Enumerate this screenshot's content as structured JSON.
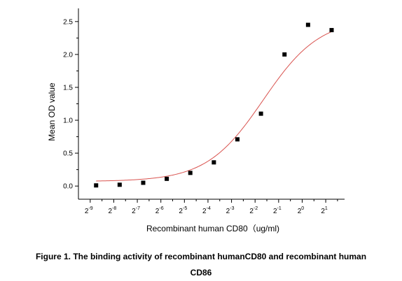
{
  "chart_data": {
    "type": "scatter",
    "xlabel": "Recombinant human  CD80（ug/ml)",
    "ylabel": "Mean OD value",
    "x_scale": "log2",
    "xlim": [
      -9.5,
      1.8
    ],
    "ylim": [
      -0.2,
      2.7
    ],
    "x_ticks": [
      {
        "exp": -9,
        "base": "2",
        "sup": "-9"
      },
      {
        "exp": -8,
        "base": "2",
        "sup": "-8"
      },
      {
        "exp": -7,
        "base": "2",
        "sup": "-7"
      },
      {
        "exp": -6,
        "base": "2",
        "sup": "-6"
      },
      {
        "exp": -5,
        "base": "2",
        "sup": "-5"
      },
      {
        "exp": -4,
        "base": "2",
        "sup": "-4"
      },
      {
        "exp": -3,
        "base": "2",
        "sup": "-3"
      },
      {
        "exp": -2,
        "base": "2",
        "sup": "-2"
      },
      {
        "exp": -1,
        "base": "2",
        "sup": "-1"
      },
      {
        "exp": 0,
        "base": "2",
        "sup": "0"
      },
      {
        "exp": 1,
        "base": "2",
        "sup": "1"
      }
    ],
    "y_ticks": [
      {
        "value": 0.0,
        "label": "0.0"
      },
      {
        "value": 0.5,
        "label": "0.5"
      },
      {
        "value": 1.0,
        "label": "1.0"
      },
      {
        "value": 1.5,
        "label": "1.5"
      },
      {
        "value": 2.0,
        "label": "2.0"
      },
      {
        "value": 2.5,
        "label": "2.5"
      }
    ],
    "points": [
      {
        "x": -8.75,
        "y": 0.01
      },
      {
        "x": -7.75,
        "y": 0.02
      },
      {
        "x": -6.75,
        "y": 0.05
      },
      {
        "x": -5.75,
        "y": 0.11
      },
      {
        "x": -4.75,
        "y": 0.2
      },
      {
        "x": -3.75,
        "y": 0.36
      },
      {
        "x": -2.75,
        "y": 0.71
      },
      {
        "x": -1.75,
        "y": 1.1
      },
      {
        "x": -0.75,
        "y": 2.0
      },
      {
        "x": 0.25,
        "y": 2.45
      },
      {
        "x": 1.25,
        "y": 2.37
      }
    ],
    "fit_curve": {
      "bottom": 0.07,
      "top": 2.55,
      "log2_ec50": -1.65,
      "hill_slope": 1.2
    },
    "colors": {
      "points": "#000000",
      "curve": "#d9534f",
      "axis": "#000000"
    }
  },
  "caption": {
    "line1": "Figure 1. The binding activity of recombinant humanCD80 and recombinant human",
    "line2": "CD86"
  }
}
